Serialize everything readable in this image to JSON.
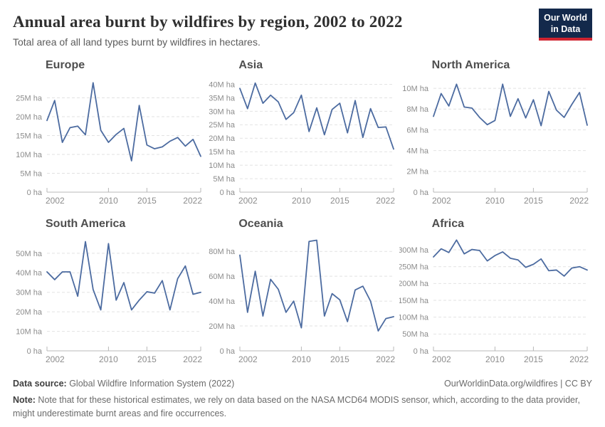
{
  "header": {
    "title": "Annual area burnt by wildfires by region, 2002 to 2022",
    "subtitle": "Total area of all land types burnt by wildfires in hectares.",
    "logo_line1": "Our World",
    "logo_line2": "in Data"
  },
  "colors": {
    "line": "#4c6ba0",
    "grid": "#e2e2e2",
    "axis": "#b8b8b8",
    "tick_text": "#8c8c8c",
    "logo_bg": "#13294b",
    "logo_bar": "#cf2430"
  },
  "x_axis": {
    "start": 2002,
    "end": 2022,
    "step": 1,
    "tick_years": [
      2002,
      2010,
      2015,
      2022
    ],
    "tick_labels": [
      "2002",
      "2010",
      "2015",
      "2022"
    ]
  },
  "chart_data": [
    {
      "type": "line",
      "title": "Europe",
      "unit": "hectares",
      "y": {
        "max": 30,
        "ticks": [
          0,
          5,
          10,
          15,
          20,
          25
        ],
        "tick_labels": [
          "0 ha",
          "5M ha",
          "10M ha",
          "15M ha",
          "20M ha",
          "25M ha"
        ]
      },
      "values": [
        19,
        24.3,
        13.2,
        17.1,
        17.5,
        15.2,
        29,
        16.4,
        13.2,
        15.3,
        16.9,
        8.3,
        23,
        12.5,
        11.5,
        12,
        13.5,
        14.5,
        12.2,
        14,
        9.5
      ]
    },
    {
      "type": "line",
      "title": "Asia",
      "unit": "hectares",
      "y": {
        "max": 42,
        "ticks": [
          0,
          5,
          10,
          15,
          20,
          25,
          30,
          35,
          40
        ],
        "tick_labels": [
          "0 ha",
          "5M ha",
          "10M ha",
          "15M ha",
          "20M ha",
          "25M ha",
          "30M ha",
          "35M ha",
          "40M ha"
        ]
      },
      "values": [
        38.5,
        31,
        40.5,
        33,
        36,
        33.5,
        27,
        29.5,
        36,
        22.5,
        31.3,
        21.3,
        30.7,
        33,
        22,
        34,
        20.3,
        31,
        24,
        24.2,
        16
      ]
    },
    {
      "type": "line",
      "title": "North America",
      "unit": "hectares",
      "y": {
        "max": 10.9,
        "ticks": [
          0,
          2,
          4,
          6,
          8,
          10
        ],
        "tick_labels": [
          "0 ha",
          "2M ha",
          "4M ha",
          "6M ha",
          "8M ha",
          "10M ha"
        ]
      },
      "values": [
        7.3,
        9.5,
        8.3,
        10.4,
        8.2,
        8.1,
        7.2,
        6.5,
        6.9,
        10.4,
        7.3,
        9.0,
        7.15,
        8.9,
        6.4,
        9.7,
        7.9,
        7.2,
        8.45,
        9.6,
        6.45
      ]
    },
    {
      "type": "line",
      "title": "South America",
      "unit": "hectares",
      "y": {
        "max": 58,
        "ticks": [
          0,
          10,
          20,
          30,
          40,
          50
        ],
        "tick_labels": [
          "0 ha",
          "10M ha",
          "20M ha",
          "30M ha",
          "40M ha",
          "50M ha"
        ]
      },
      "values": [
        40.5,
        36.5,
        40.5,
        40.5,
        28,
        56,
        31.5,
        21,
        55,
        26,
        35,
        21,
        26,
        30.3,
        29.6,
        36,
        21,
        37,
        43.5,
        29,
        30
      ]
    },
    {
      "type": "line",
      "title": "Oceania",
      "unit": "hectares",
      "y": {
        "max": 91,
        "ticks": [
          0,
          20,
          40,
          60,
          80
        ],
        "tick_labels": [
          "0 ha",
          "20M ha",
          "40M ha",
          "60M ha",
          "80M ha"
        ]
      },
      "values": [
        77,
        31,
        64,
        28,
        57.5,
        49.5,
        31,
        40,
        18.5,
        88,
        89,
        28,
        46,
        41,
        23.5,
        49,
        52,
        40,
        16,
        26,
        27.5
      ]
    },
    {
      "type": "line",
      "title": "Africa",
      "unit": "hectares",
      "y": {
        "max": 336,
        "ticks": [
          0,
          50,
          100,
          150,
          200,
          250,
          300
        ],
        "tick_labels": [
          "0 ha",
          "50M ha",
          "100M ha",
          "150M ha",
          "200M ha",
          "250M ha",
          "300M ha"
        ]
      },
      "values": [
        279,
        303,
        292,
        329,
        288,
        301,
        298,
        267,
        283,
        294,
        275,
        270,
        248,
        257,
        273,
        238,
        240,
        222,
        246,
        250,
        240
      ]
    }
  ],
  "footer": {
    "datasource_label": "Data source:",
    "datasource_text": " Global Wildfire Information System (2022)",
    "link_text": "OurWorldinData.org/wildfires | CC BY",
    "note_label": "Note:",
    "note_text": " Note that for these historical estimates, we rely on data based on the NASA MCD64 MODIS sensor, which, according to the data provider, might underestimate burnt areas and fire occurrences."
  }
}
